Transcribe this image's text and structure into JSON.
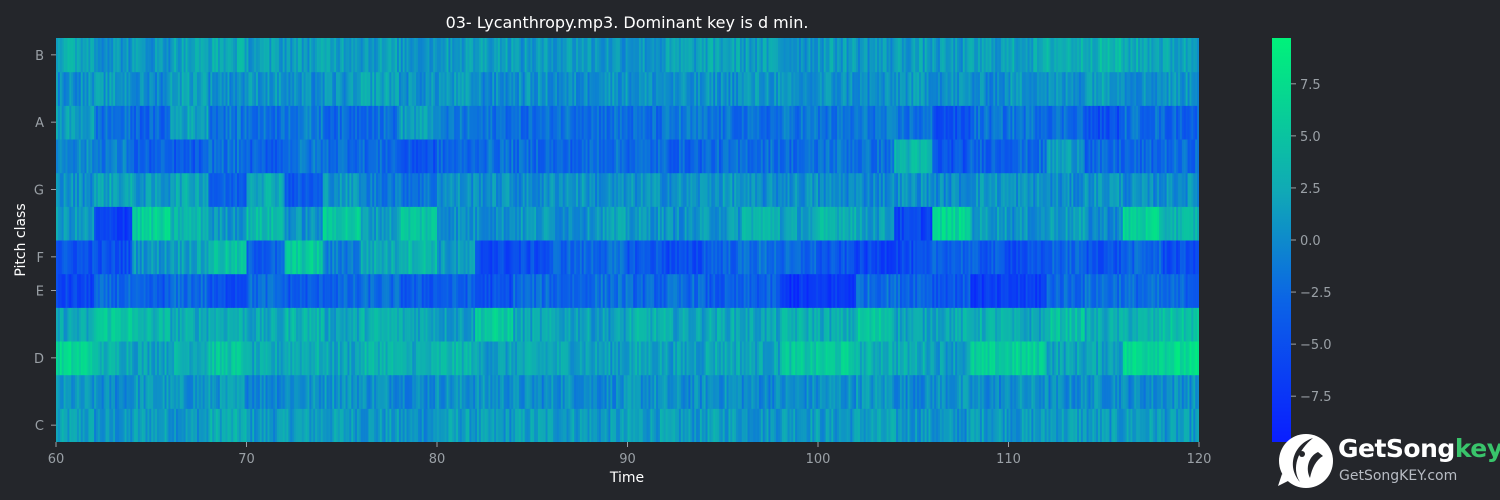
{
  "chart_data": {
    "type": "heatmap",
    "title": "03- Lycanthropy.mp3. Dominant key is d min.",
    "xlabel": "Time",
    "ylabel": "Pitch class",
    "xlim": [
      60,
      120
    ],
    "x_ticks": [
      "60",
      "70",
      "80",
      "90",
      "100",
      "110",
      "120"
    ],
    "rows": [
      "C",
      "C#",
      "D",
      "D#",
      "E",
      "F",
      "F#",
      "G",
      "G#",
      "A",
      "A#",
      "B"
    ],
    "y_tick_labels": [
      "C",
      "D",
      "E",
      "F",
      "G",
      "A",
      "B"
    ],
    "colorbar": {
      "range": [
        -9.7,
        9.7
      ],
      "ticks": [
        "−7.5",
        "−5.0",
        "−2.5",
        "0.0",
        "2.5",
        "5.0",
        "7.5"
      ],
      "colors": [
        "#0a1eff",
        "#0b64e6",
        "#10a9b6",
        "#00f27a"
      ]
    },
    "segments_time": [
      60,
      62,
      64,
      66,
      68,
      70,
      72,
      74,
      76,
      78,
      80,
      82,
      84,
      86,
      88,
      90,
      92,
      94,
      96,
      98,
      100,
      102,
      104,
      106,
      108,
      110,
      112,
      114,
      116,
      118,
      120
    ],
    "segment_levels": {
      "C": [
        1.5,
        0.5,
        1.5,
        1.0,
        2.5,
        1.0,
        1.5,
        1.5,
        1.0,
        0.5,
        1.5,
        1.0,
        1.5,
        1.5,
        1.0,
        1.5,
        1.0,
        1.5,
        1.0,
        1.5,
        1.0,
        1.5,
        1.0,
        0.5,
        1.5,
        1.0,
        1.5,
        1.0,
        1.5,
        1.0
      ],
      "C#": [
        0.5,
        0.0,
        1.0,
        0.5,
        1.0,
        0.0,
        0.5,
        1.0,
        0.5,
        0.0,
        0.5,
        0.5,
        0.0,
        0.5,
        0.0,
        0.5,
        0.0,
        0.5,
        0.0,
        0.0,
        0.5,
        1.0,
        0.0,
        0.5,
        0.0,
        0.5,
        0.0,
        0.5,
        0.0,
        0.5
      ],
      "D": [
        6.5,
        3.0,
        2.0,
        3.0,
        5.0,
        2.0,
        3.0,
        2.0,
        3.5,
        2.5,
        3.5,
        1.5,
        2.0,
        2.0,
        1.5,
        2.0,
        1.5,
        2.5,
        2.0,
        5.0,
        5.5,
        3.0,
        2.5,
        1.5,
        5.5,
        6.0,
        2.0,
        2.0,
        7.0,
        7.0
      ],
      "D#": [
        2.0,
        5.5,
        3.5,
        2.5,
        3.0,
        2.0,
        3.5,
        2.0,
        3.0,
        2.5,
        1.5,
        5.5,
        2.0,
        2.0,
        1.5,
        3.0,
        2.0,
        2.5,
        2.0,
        3.0,
        2.5,
        5.0,
        2.0,
        2.5,
        3.0,
        2.0,
        4.5,
        2.5,
        3.0,
        4.5
      ],
      "E": [
        -6.0,
        -3.0,
        -4.0,
        -2.5,
        -5.0,
        -2.5,
        -4.0,
        -3.0,
        -2.5,
        -4.0,
        -3.5,
        -5.0,
        -2.5,
        -3.0,
        -2.0,
        -3.0,
        -2.5,
        -4.0,
        -3.5,
        -7.5,
        -7.0,
        -2.0,
        -2.5,
        -4.0,
        -7.0,
        -6.5,
        -2.5,
        -2.0,
        -2.5,
        -3.0
      ],
      "F": [
        -4.5,
        -5.0,
        1.0,
        2.0,
        4.5,
        -3.5,
        5.5,
        -1.0,
        2.5,
        4.0,
        1.0,
        -5.5,
        -5.0,
        -3.0,
        -2.5,
        -4.0,
        -5.5,
        -3.0,
        -2.0,
        -3.0,
        -4.5,
        -6.0,
        -5.5,
        -3.0,
        -4.0,
        -5.0,
        -3.0,
        -4.5,
        -3.0,
        -5.0
      ],
      "F#": [
        1.0,
        -6.5,
        6.0,
        3.5,
        1.0,
        4.0,
        0.5,
        5.5,
        1.5,
        5.0,
        0.5,
        0.5,
        1.0,
        0.5,
        1.5,
        1.0,
        0.5,
        1.0,
        3.5,
        1.5,
        3.5,
        1.5,
        -6.0,
        6.5,
        1.5,
        0.5,
        1.5,
        0.0,
        6.0,
        3.5
      ],
      "G": [
        0.5,
        2.0,
        1.0,
        2.5,
        -3.5,
        3.0,
        -4.0,
        1.0,
        -1.0,
        -1.5,
        0.5,
        0.5,
        0.0,
        1.0,
        0.0,
        0.5,
        0.5,
        1.0,
        0.0,
        0.5,
        0.0,
        0.0,
        0.5,
        0.0,
        1.0,
        0.5,
        0.0,
        1.0,
        0.0,
        0.5
      ],
      "G#": [
        0.0,
        -1.0,
        -3.5,
        -4.0,
        -2.0,
        -3.5,
        -1.5,
        -2.0,
        -2.5,
        -4.5,
        -3.0,
        -2.0,
        -2.5,
        -3.0,
        -2.0,
        -2.5,
        -3.0,
        -2.5,
        -2.0,
        -2.5,
        -1.5,
        -2.0,
        3.5,
        -4.5,
        -3.0,
        -2.5,
        1.5,
        -3.0,
        -3.0,
        -2.5
      ],
      "A": [
        1.5,
        -2.0,
        -3.0,
        2.0,
        -1.5,
        -2.0,
        -1.0,
        -2.5,
        -2.0,
        1.5,
        -1.5,
        -2.0,
        -2.5,
        -1.5,
        -2.0,
        -2.5,
        -1.5,
        -2.0,
        -2.5,
        -1.5,
        -2.0,
        -1.5,
        -2.0,
        -5.0,
        -2.0,
        -1.5,
        -2.0,
        -5.0,
        -2.0,
        -3.0
      ],
      "A#": [
        0.5,
        1.0,
        0.0,
        2.0,
        0.5,
        1.0,
        0.0,
        0.5,
        2.0,
        0.5,
        1.0,
        0.0,
        0.5,
        0.0,
        1.0,
        0.5,
        0.0,
        0.5,
        1.0,
        0.0,
        0.5,
        0.0,
        1.0,
        0.5,
        0.0,
        1.0,
        0.5,
        2.0,
        0.5,
        1.0
      ],
      "B": [
        2.5,
        1.0,
        1.0,
        2.0,
        2.5,
        1.5,
        1.5,
        2.0,
        1.5,
        1.0,
        1.5,
        2.0,
        1.0,
        1.5,
        1.0,
        1.0,
        1.5,
        2.0,
        1.5,
        1.0,
        1.5,
        1.0,
        1.5,
        1.0,
        1.5,
        2.0,
        3.0,
        3.5,
        2.5,
        2.0
      ]
    }
  },
  "branding": {
    "name_main": "GetSong",
    "name_accent": "key",
    "url": "GetSongKEY.com",
    "logo_icon": "bird-icon",
    "accent_color": "#39c46b"
  },
  "colors": {
    "background": "#24262b",
    "text": "#ffffff",
    "tick_text": "#9aa0a6"
  }
}
